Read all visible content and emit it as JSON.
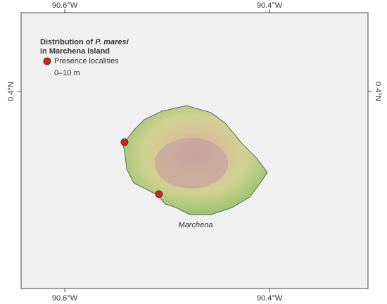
{
  "map": {
    "title": {
      "prefix": "Distribution of",
      "species": "P. maresi",
      "line2": "in Marchena Island"
    },
    "legend": {
      "label": "Presence localities",
      "note": "0–10 m",
      "color": "#d42020"
    },
    "lon_ticks": [
      {
        "value": -90.6,
        "label": "90.6°W"
      },
      {
        "value": -90.4,
        "label": "90.4°W"
      }
    ],
    "lat_ticks": [
      {
        "value": 0.4,
        "label": "0.4°N"
      }
    ],
    "island_label": "Marchena",
    "points": [
      {
        "lon": -90.5416,
        "lat": 0.3505
      },
      {
        "lon": -90.508,
        "lat": 0.2997
      }
    ]
  }
}
